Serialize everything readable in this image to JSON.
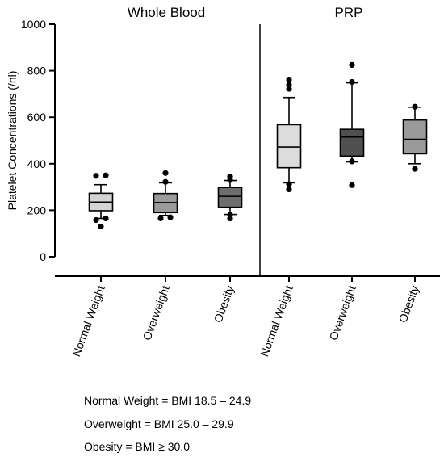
{
  "chart_data": {
    "type": "box",
    "ylabel": "Platelet Concentrations (/nl)",
    "ylim": [
      0,
      1000
    ],
    "yticks": [
      0,
      200,
      400,
      600,
      800,
      1000
    ],
    "group_labels": [
      "Whole Blood",
      "PRP"
    ],
    "categories": [
      "Normal Weight",
      "Overweight",
      "Obesity"
    ],
    "grid": false,
    "groups": [
      {
        "name": "Whole Blood",
        "boxes": [
          {
            "category": "Normal Weight",
            "color": "#d4d4d4",
            "q1": 198,
            "median": 235,
            "q3": 273,
            "whisker_low": 165,
            "whisker_high": 310,
            "outliers": [
              130,
              158,
              165,
              348,
              350
            ]
          },
          {
            "category": "Overweight",
            "color": "#9a9a9a",
            "q1": 190,
            "median": 233,
            "q3": 272,
            "whisker_low": 178,
            "whisker_high": 318,
            "outliers": [
              165,
              170,
              322,
              360
            ]
          },
          {
            "category": "Obesity",
            "color": "#6e6e6e",
            "q1": 213,
            "median": 260,
            "q3": 298,
            "whisker_low": 182,
            "whisker_high": 328,
            "outliers": [
              165,
              180,
              330,
              345
            ]
          }
        ]
      },
      {
        "name": "PRP",
        "boxes": [
          {
            "category": "Normal Weight",
            "color": "#dcdcdc",
            "q1": 383,
            "median": 472,
            "q3": 568,
            "whisker_low": 318,
            "whisker_high": 685,
            "outliers": [
              290,
              312,
              722,
              740,
              762
            ]
          },
          {
            "category": "Overweight",
            "color": "#505050",
            "q1": 433,
            "median": 515,
            "q3": 548,
            "whisker_low": 408,
            "whisker_high": 748,
            "outliers": [
              308,
              410,
              752,
              825
            ]
          },
          {
            "category": "Obesity",
            "color": "#9a9a9a",
            "q1": 443,
            "median": 505,
            "q3": 588,
            "whisker_low": 400,
            "whisker_high": 643,
            "outliers": [
              378,
              645
            ]
          }
        ]
      }
    ]
  },
  "legend": {
    "lines": [
      "Normal Weight = BMI 18.5 – 24.9",
      "Overweight = BMI 25.0 – 29.9",
      "Obesity = BMI ≥ 30.0"
    ]
  }
}
